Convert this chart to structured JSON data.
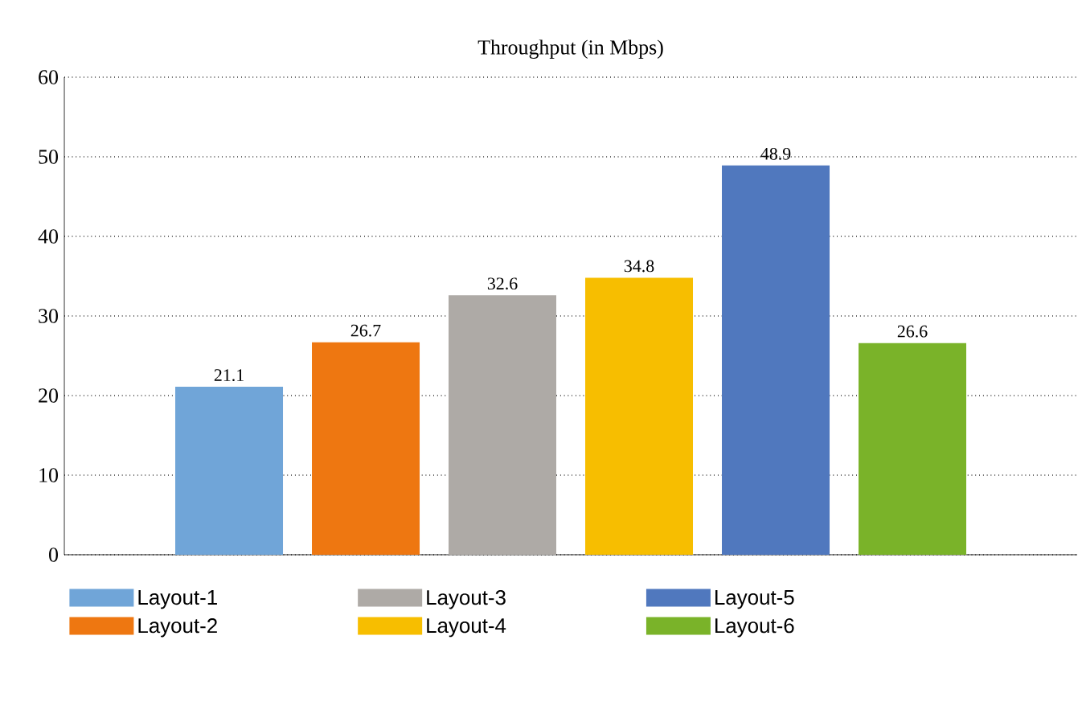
{
  "chart_data": {
    "type": "bar",
    "title": "Throughput (in Mbps)",
    "categories": [
      null
    ],
    "series": [
      {
        "name": "Layout-1",
        "color": "#70a5d8",
        "values": [
          21.1
        ]
      },
      {
        "name": "Layout-2",
        "color": "#ee7711",
        "values": [
          26.7
        ]
      },
      {
        "name": "Layout-3",
        "color": "#aeaaa6",
        "values": [
          32.6
        ]
      },
      {
        "name": "Layout-4",
        "color": "#f7be00",
        "values": [
          34.8
        ]
      },
      {
        "name": "Layout-5",
        "color": "#5078be",
        "values": [
          48.9
        ]
      },
      {
        "name": "Layout-6",
        "color": "#7ab329",
        "values": [
          26.6
        ]
      }
    ],
    "ylim": [
      0,
      60
    ],
    "yticks": [
      0,
      10,
      20,
      30,
      40,
      50,
      60
    ],
    "grid": "y",
    "legend": "bottom",
    "data_labels": true
  }
}
